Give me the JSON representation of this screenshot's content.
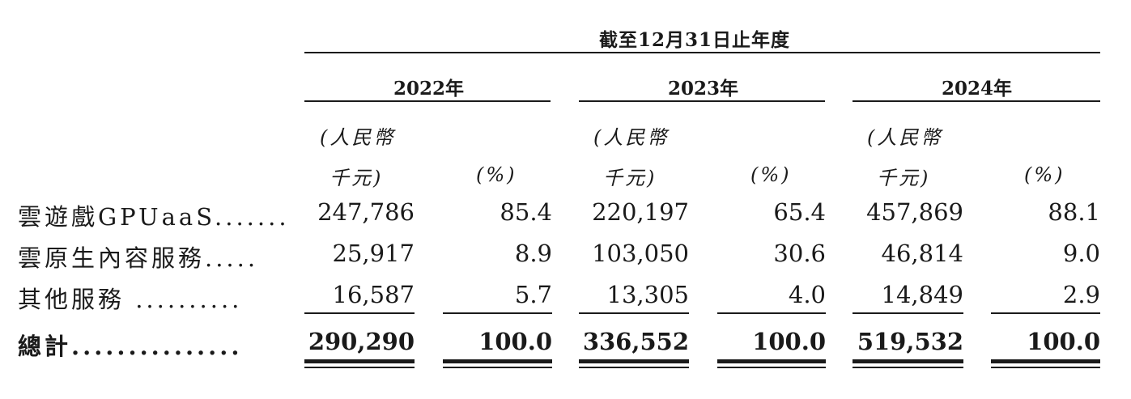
{
  "table": {
    "period_header": "截至12月31日止年度",
    "years": [
      {
        "label": "2022年",
        "unit_line1": "(人民幣",
        "unit_line2": "千元)",
        "pct_label": "(%)"
      },
      {
        "label": "2023年",
        "unit_line1": "(人民幣",
        "unit_line2": "千元)",
        "pct_label": "(%)"
      },
      {
        "label": "2024年",
        "unit_line1": "(人民幣",
        "unit_line2": "千元)",
        "pct_label": "(%)"
      }
    ],
    "rows": [
      {
        "label": "雲遊戲GPUaaS.......",
        "cells": [
          "247,786",
          "85.4",
          "220,197",
          "65.4",
          "457,869",
          "88.1"
        ]
      },
      {
        "label": "雲原生內容服務.....",
        "cells": [
          "25,917",
          "8.9",
          "103,050",
          "30.6",
          "46,814",
          "9.0"
        ]
      },
      {
        "label": "其他服務 ..........",
        "cells": [
          "16,587",
          "5.7",
          "13,305",
          "4.0",
          "14,849",
          "2.9"
        ]
      }
    ],
    "total": {
      "label": "總計...............",
      "cells": [
        "290,290",
        "100.0",
        "336,552",
        "100.0",
        "519,532",
        "100.0"
      ]
    }
  }
}
